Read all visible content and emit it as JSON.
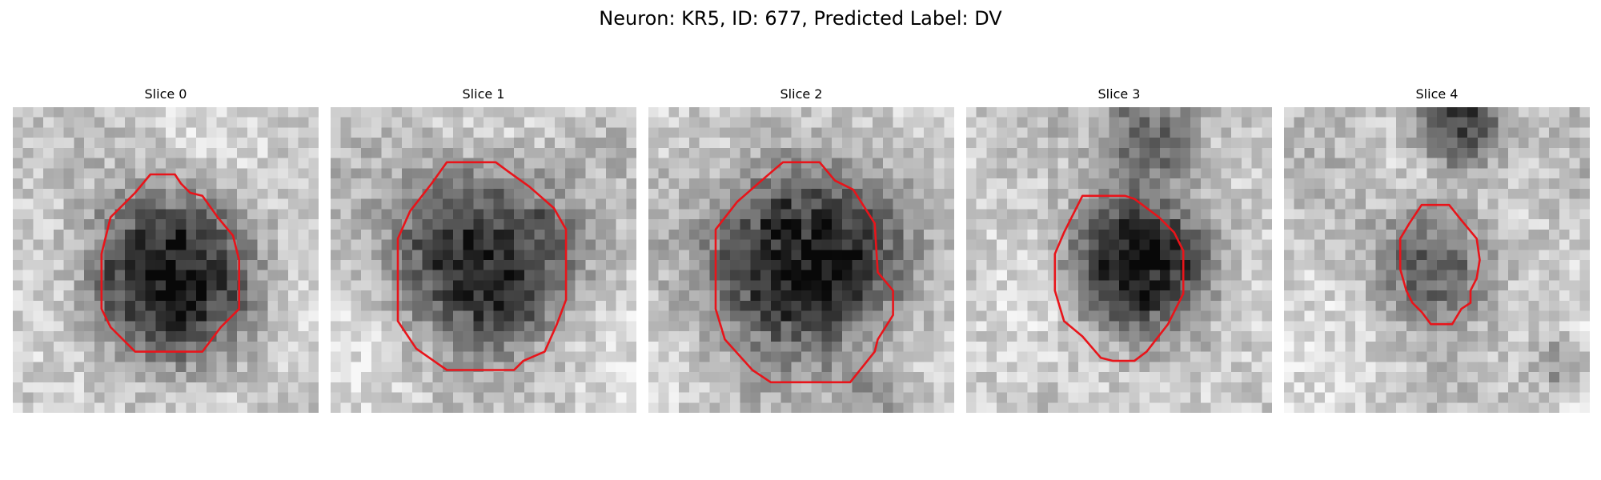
{
  "figure": {
    "title": "Neuron: KR5, ID: 677, Predicted Label: DV"
  },
  "panels": [
    {
      "title": "Slice 0",
      "blob": {
        "center": [
          0.5,
          0.55
        ],
        "radius": 0.27,
        "strength": 0.72
      },
      "extra_blobs": [],
      "contour": [
        [
          0.45,
          0.22
        ],
        [
          0.53,
          0.22
        ],
        [
          0.55,
          0.25
        ],
        [
          0.58,
          0.28
        ],
        [
          0.62,
          0.29
        ],
        [
          0.67,
          0.36
        ],
        [
          0.72,
          0.42
        ],
        [
          0.74,
          0.5
        ],
        [
          0.74,
          0.66
        ],
        [
          0.68,
          0.72
        ],
        [
          0.62,
          0.8
        ],
        [
          0.48,
          0.8
        ],
        [
          0.4,
          0.8
        ],
        [
          0.32,
          0.72
        ],
        [
          0.29,
          0.66
        ],
        [
          0.29,
          0.48
        ],
        [
          0.32,
          0.36
        ],
        [
          0.4,
          0.28
        ]
      ],
      "contour_color": "#e8141a"
    },
    {
      "title": "Slice 1",
      "blob": {
        "center": [
          0.5,
          0.48
        ],
        "radius": 0.3,
        "strength": 0.66
      },
      "extra_blobs": [],
      "contour": [
        [
          0.38,
          0.18
        ],
        [
          0.54,
          0.18
        ],
        [
          0.58,
          0.21
        ],
        [
          0.65,
          0.26
        ],
        [
          0.73,
          0.33
        ],
        [
          0.77,
          0.4
        ],
        [
          0.77,
          0.63
        ],
        [
          0.74,
          0.71
        ],
        [
          0.7,
          0.8
        ],
        [
          0.63,
          0.83
        ],
        [
          0.6,
          0.86
        ],
        [
          0.5,
          0.86
        ],
        [
          0.38,
          0.86
        ],
        [
          0.28,
          0.79
        ],
        [
          0.22,
          0.7
        ],
        [
          0.22,
          0.43
        ],
        [
          0.26,
          0.34
        ],
        [
          0.33,
          0.25
        ]
      ],
      "contour_color": "#e8141a"
    },
    {
      "title": "Slice 2",
      "blob": {
        "center": [
          0.5,
          0.5
        ],
        "radius": 0.31,
        "strength": 0.76
      },
      "extra_blobs": [
        {
          "center": [
            0.75,
            0.98
          ],
          "radius": 0.15,
          "strength": 0.25
        }
      ],
      "contour": [
        [
          0.44,
          0.18
        ],
        [
          0.56,
          0.18
        ],
        [
          0.61,
          0.24
        ],
        [
          0.67,
          0.27
        ],
        [
          0.74,
          0.38
        ],
        [
          0.75,
          0.54
        ],
        [
          0.8,
          0.6
        ],
        [
          0.8,
          0.68
        ],
        [
          0.75,
          0.76
        ],
        [
          0.74,
          0.8
        ],
        [
          0.66,
          0.9
        ],
        [
          0.58,
          0.9
        ],
        [
          0.4,
          0.9
        ],
        [
          0.34,
          0.86
        ],
        [
          0.25,
          0.76
        ],
        [
          0.22,
          0.66
        ],
        [
          0.22,
          0.4
        ],
        [
          0.29,
          0.31
        ],
        [
          0.37,
          0.24
        ]
      ],
      "contour_color": "#e8141a"
    },
    {
      "title": "Slice 3",
      "blob": {
        "center": [
          0.55,
          0.5
        ],
        "radius": 0.23,
        "strength": 0.7
      },
      "extra_blobs": [
        {
          "center": [
            0.62,
            0.07
          ],
          "radius": 0.17,
          "strength": 0.45
        }
      ],
      "contour": [
        [
          0.38,
          0.29
        ],
        [
          0.52,
          0.29
        ],
        [
          0.55,
          0.3
        ],
        [
          0.63,
          0.36
        ],
        [
          0.68,
          0.41
        ],
        [
          0.71,
          0.47
        ],
        [
          0.71,
          0.61
        ],
        [
          0.66,
          0.71
        ],
        [
          0.59,
          0.8
        ],
        [
          0.55,
          0.83
        ],
        [
          0.48,
          0.83
        ],
        [
          0.44,
          0.82
        ],
        [
          0.38,
          0.75
        ],
        [
          0.32,
          0.7
        ],
        [
          0.29,
          0.6
        ],
        [
          0.29,
          0.48
        ],
        [
          0.32,
          0.41
        ]
      ],
      "contour_color": "#e8141a"
    },
    {
      "title": "Slice 4",
      "blob": {
        "center": [
          0.48,
          0.5
        ],
        "radius": 0.2,
        "strength": 0.4
      },
      "extra_blobs": [
        {
          "center": [
            0.58,
            0.06
          ],
          "radius": 0.15,
          "strength": 0.6
        },
        {
          "center": [
            0.9,
            0.84
          ],
          "radius": 0.1,
          "strength": 0.25
        }
      ],
      "contour": [
        [
          0.45,
          0.32
        ],
        [
          0.54,
          0.32
        ],
        [
          0.58,
          0.37
        ],
        [
          0.63,
          0.43
        ],
        [
          0.64,
          0.5
        ],
        [
          0.63,
          0.56
        ],
        [
          0.61,
          0.6
        ],
        [
          0.61,
          0.64
        ],
        [
          0.58,
          0.66
        ],
        [
          0.55,
          0.71
        ],
        [
          0.48,
          0.71
        ],
        [
          0.45,
          0.67
        ],
        [
          0.42,
          0.64
        ],
        [
          0.4,
          0.6
        ],
        [
          0.38,
          0.53
        ],
        [
          0.38,
          0.43
        ],
        [
          0.41,
          0.38
        ]
      ],
      "contour_color": "#e8141a"
    }
  ]
}
